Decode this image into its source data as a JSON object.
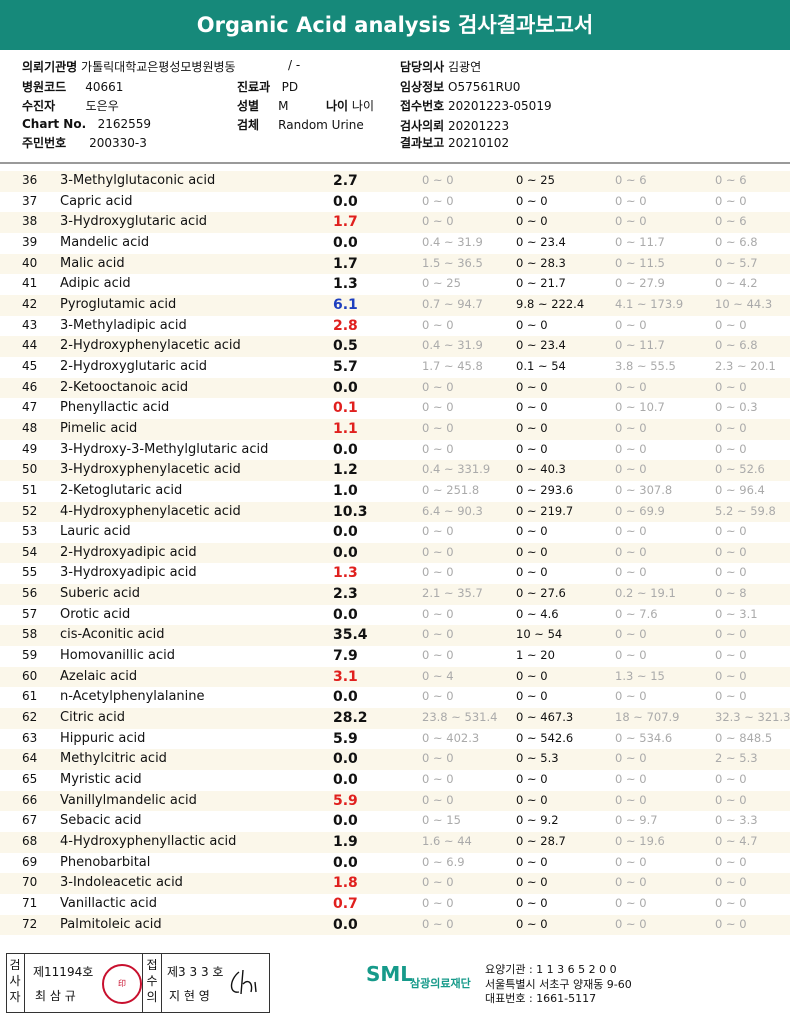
{
  "title": "Organic Acid analysis 검사결과보고서",
  "header": {
    "org_label": "의뢰기관명",
    "org_value": "가톨릭대학교은평성모병원병동",
    "org_extra": "/ -",
    "code_label": "병원코드",
    "code_value": "40661",
    "receiver_label": "수진자",
    "receiver_value": "도은우",
    "chart_label": "Chart No.",
    "chart_value": "2162559",
    "id_label": "주민번호",
    "id_value": "200330-3",
    "dept_label": "진료과",
    "dept_value": "PD",
    "sex_label": "성별",
    "sex_value": "M",
    "age_label": "나이",
    "age_value": "나이",
    "specimen_label": "검체",
    "specimen_value": "Random Urine",
    "doctor_label": "담당의사",
    "doctor_value": "김광연",
    "clinical_label": "임상정보",
    "clinical_value": "O57561RU0",
    "accession_label": "접수번호",
    "accession_value": "20201223-05019",
    "request_label": "검사의뢰",
    "request_value": "20201223",
    "report_label": "결과보고",
    "report_value": "20210102"
  },
  "colors": {
    "banner": "#16897a",
    "high": "#e0201e",
    "low": "#1e3fbf"
  },
  "rows": [
    {
      "no": "36",
      "name": "3-Methylglutaconic acid",
      "value": "2.7",
      "flag": "",
      "r1": "0 ~ 0",
      "r2": "0 ~ 25",
      "r3": "0 ~ 6",
      "r4": "0 ~ 6"
    },
    {
      "no": "37",
      "name": "Capric acid",
      "value": "0.0",
      "flag": "",
      "r1": "0 ~ 0",
      "r2": "0 ~ 0",
      "r3": "0 ~ 0",
      "r4": "0 ~ 0"
    },
    {
      "no": "38",
      "name": "3-Hydroxyglutaric acid",
      "value": "1.7",
      "flag": "high",
      "r1": "0 ~ 0",
      "r2": "0 ~ 0",
      "r3": "0 ~ 0",
      "r4": "0 ~ 6"
    },
    {
      "no": "39",
      "name": "Mandelic acid",
      "value": "0.0",
      "flag": "",
      "r1": "0.4 ~ 31.9",
      "r2": "0 ~ 23.4",
      "r3": "0 ~ 11.7",
      "r4": "0 ~ 6.8"
    },
    {
      "no": "40",
      "name": "Malic acid",
      "value": "1.7",
      "flag": "",
      "r1": "1.5 ~ 36.5",
      "r2": "0 ~ 28.3",
      "r3": "0 ~ 11.5",
      "r4": "0 ~ 5.7"
    },
    {
      "no": "41",
      "name": "Adipic acid",
      "value": "1.3",
      "flag": "",
      "r1": "0 ~ 25",
      "r2": "0 ~ 21.7",
      "r3": "0 ~ 27.9",
      "r4": "0 ~ 4.2"
    },
    {
      "no": "42",
      "name": "Pyroglutamic acid",
      "value": "6.1",
      "flag": "low",
      "r1": "0.7 ~ 94.7",
      "r2": "9.8 ~ 222.4",
      "r3": "4.1 ~ 173.9",
      "r4": "10 ~ 44.3"
    },
    {
      "no": "43",
      "name": "3-Methyladipic acid",
      "value": "2.8",
      "flag": "high",
      "r1": "0 ~ 0",
      "r2": "0 ~ 0",
      "r3": "0 ~ 0",
      "r4": "0 ~ 0"
    },
    {
      "no": "44",
      "name": "2-Hydroxyphenylacetic acid",
      "value": "0.5",
      "flag": "",
      "r1": "0.4 ~ 31.9",
      "r2": "0 ~ 23.4",
      "r3": "0 ~ 11.7",
      "r4": "0 ~ 6.8"
    },
    {
      "no": "45",
      "name": "2-Hydroxyglutaric acid",
      "value": "5.7",
      "flag": "",
      "r1": "1.7 ~ 45.8",
      "r2": "0.1 ~ 54",
      "r3": "3.8 ~ 55.5",
      "r4": "2.3 ~ 20.1"
    },
    {
      "no": "46",
      "name": "2-Ketooctanoic acid",
      "value": "0.0",
      "flag": "",
      "r1": "0 ~ 0",
      "r2": "0 ~ 0",
      "r3": "0 ~ 0",
      "r4": "0 ~ 0"
    },
    {
      "no": "47",
      "name": "Phenyllactic acid",
      "value": "0.1",
      "flag": "high",
      "r1": "0 ~ 0",
      "r2": "0 ~ 0",
      "r3": "0 ~ 10.7",
      "r4": "0 ~ 0.3"
    },
    {
      "no": "48",
      "name": "Pimelic acid",
      "value": "1.1",
      "flag": "high",
      "r1": "0 ~ 0",
      "r2": "0 ~ 0",
      "r3": "0 ~ 0",
      "r4": "0 ~ 0"
    },
    {
      "no": "49",
      "name": "3-Hydroxy-3-Methylglutaric acid",
      "value": "0.0",
      "flag": "",
      "r1": "0 ~ 0",
      "r2": "0 ~ 0",
      "r3": "0 ~ 0",
      "r4": "0 ~ 0"
    },
    {
      "no": "50",
      "name": "3-Hydroxyphenylacetic acid",
      "value": "1.2",
      "flag": "",
      "r1": "0.4 ~ 331.9",
      "r2": "0 ~ 40.3",
      "r3": "0 ~ 0",
      "r4": "0 ~ 52.6"
    },
    {
      "no": "51",
      "name": "2-Ketoglutaric acid",
      "value": "1.0",
      "flag": "",
      "r1": "0 ~ 251.8",
      "r2": "0 ~ 293.6",
      "r3": "0 ~ 307.8",
      "r4": "0 ~ 96.4"
    },
    {
      "no": "52",
      "name": "4-Hydroxyphenylacetic acid",
      "value": "10.3",
      "flag": "",
      "r1": "6.4 ~ 90.3",
      "r2": "0 ~ 219.7",
      "r3": "0 ~ 69.9",
      "r4": "5.2 ~ 59.8"
    },
    {
      "no": "53",
      "name": "Lauric acid",
      "value": "0.0",
      "flag": "",
      "r1": "0 ~ 0",
      "r2": "0 ~ 0",
      "r3": "0 ~ 0",
      "r4": "0 ~ 0"
    },
    {
      "no": "54",
      "name": "2-Hydroxyadipic acid",
      "value": "0.0",
      "flag": "",
      "r1": "0 ~ 0",
      "r2": "0 ~ 0",
      "r3": "0 ~ 0",
      "r4": "0 ~ 0"
    },
    {
      "no": "55",
      "name": "3-Hydroxyadipic acid",
      "value": "1.3",
      "flag": "high",
      "r1": "0 ~ 0",
      "r2": "0 ~ 0",
      "r3": "0 ~ 0",
      "r4": "0 ~ 0"
    },
    {
      "no": "56",
      "name": "Suberic acid",
      "value": "2.3",
      "flag": "",
      "r1": "2.1 ~ 35.7",
      "r2": "0 ~ 27.6",
      "r3": "0.2 ~ 19.1",
      "r4": "0 ~ 8"
    },
    {
      "no": "57",
      "name": "Orotic acid",
      "value": "0.0",
      "flag": "",
      "r1": "0 ~ 0",
      "r2": "0 ~ 4.6",
      "r3": "0 ~ 7.6",
      "r4": "0 ~ 3.1"
    },
    {
      "no": "58",
      "name": "cis-Aconitic acid",
      "value": "35.4",
      "flag": "",
      "r1": "0 ~ 0",
      "r2": "10 ~ 54",
      "r3": "0 ~ 0",
      "r4": "0 ~ 0"
    },
    {
      "no": "59",
      "name": "Homovanillic acid",
      "value": "7.9",
      "flag": "",
      "r1": "0 ~ 0",
      "r2": "1 ~ 20",
      "r3": "0 ~ 0",
      "r4": "0 ~ 0"
    },
    {
      "no": "60",
      "name": "Azelaic acid",
      "value": "3.1",
      "flag": "high",
      "r1": "0 ~ 4",
      "r2": "0 ~ 0",
      "r3": "1.3 ~ 15",
      "r4": "0 ~ 0"
    },
    {
      "no": "61",
      "name": "n-Acetylphenylalanine",
      "value": "0.0",
      "flag": "",
      "r1": "0 ~ 0",
      "r2": "0 ~ 0",
      "r3": "0 ~ 0",
      "r4": "0 ~ 0"
    },
    {
      "no": "62",
      "name": "Citric acid",
      "value": "28.2",
      "flag": "",
      "r1": "23.8 ~ 531.4",
      "r2": "0 ~ 467.3",
      "r3": "18 ~ 707.9",
      "r4": "32.3 ~ 321.3"
    },
    {
      "no": "63",
      "name": "Hippuric acid",
      "value": "5.9",
      "flag": "",
      "r1": "0 ~ 402.3",
      "r2": "0 ~ 542.6",
      "r3": "0 ~ 534.6",
      "r4": "0 ~ 848.5"
    },
    {
      "no": "64",
      "name": "Methylcitric acid",
      "value": "0.0",
      "flag": "",
      "r1": "0 ~ 0",
      "r2": "0 ~ 5.3",
      "r3": "0 ~ 0",
      "r4": "2 ~ 5.3"
    },
    {
      "no": "65",
      "name": "Myristic acid",
      "value": "0.0",
      "flag": "",
      "r1": "0 ~ 0",
      "r2": "0 ~ 0",
      "r3": "0 ~ 0",
      "r4": "0 ~ 0"
    },
    {
      "no": "66",
      "name": "Vanillylmandelic acid",
      "value": "5.9",
      "flag": "high",
      "r1": "0 ~ 0",
      "r2": "0 ~ 0",
      "r3": "0 ~ 0",
      "r4": "0 ~ 0"
    },
    {
      "no": "67",
      "name": "Sebacic acid",
      "value": "0.0",
      "flag": "",
      "r1": "0 ~ 15",
      "r2": "0 ~ 9.2",
      "r3": "0 ~ 9.7",
      "r4": "0 ~ 3.3"
    },
    {
      "no": "68",
      "name": "4-Hydroxyphenyllactic acid",
      "value": "1.9",
      "flag": "",
      "r1": "1.6 ~ 44",
      "r2": "0 ~ 28.7",
      "r3": "0 ~ 19.6",
      "r4": "0 ~ 4.7"
    },
    {
      "no": "69",
      "name": "Phenobarbital",
      "value": "0.0",
      "flag": "",
      "r1": "0 ~ 6.9",
      "r2": "0 ~ 0",
      "r3": "0 ~ 0",
      "r4": "0 ~ 0"
    },
    {
      "no": "70",
      "name": "3-Indoleacetic acid",
      "value": "1.8",
      "flag": "high",
      "r1": "0 ~ 0",
      "r2": "0 ~ 0",
      "r3": "0 ~ 0",
      "r4": "0 ~ 0"
    },
    {
      "no": "71",
      "name": "Vanillactic acid",
      "value": "0.7",
      "flag": "high",
      "r1": "0 ~ 0",
      "r2": "0 ~ 0",
      "r3": "0 ~ 0",
      "r4": "0 ~ 0"
    },
    {
      "no": "72",
      "name": "Palmitoleic acid",
      "value": "0.0",
      "flag": "",
      "r1": "0 ~ 0",
      "r2": "0 ~ 0",
      "r3": "0 ~ 0",
      "r4": "0 ~ 0"
    }
  ],
  "footer": {
    "inspector_label": "검사자",
    "inspector_no": "제11194호",
    "inspector_name": "최 삼 규",
    "seal_text": "印",
    "approver_label": "접수의",
    "approver_no": "제3 3 3 호",
    "approver_name": "지 현 영",
    "logo": "SML",
    "logo_name": "삼광의료재단",
    "inst_code": "요양기관 : 1 1 3 6 5 2 0 0",
    "address": "서울특별시 서초구 양재동 9-60",
    "phone": "대표번호 : 1661-5117"
  }
}
